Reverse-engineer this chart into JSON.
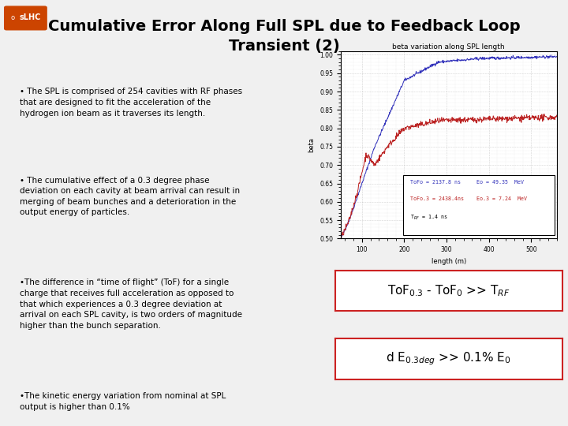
{
  "title_line1": "Cumulative Error Along Full SPL due to Feedback Loop",
  "title_line2": "Transient (2)",
  "title_fontsize": 14,
  "background_color": "#f0f0f0",
  "logo_text": "sLHC",
  "logo_bg": "#cc4400",
  "bullet_texts": [
    "• The SPL is comprised of 254 cavities with RF phases\nthat are designed to fit the acceleration of the\nhydrogen ion beam as it traverses its length.",
    "• The cumulative effect of a 0.3 degree phase\ndeviation on each cavity at beam arrival can result in\nmerging of beam bunches and a deterioration in the\noutput energy of particles.",
    "•The difference in “time of flight” (ToF) for a single\ncharge that receives full acceleration as opposed to\nthat which experiences a 0.3 degree deviation at\narrival on each SPL cavity, is two orders of magnitude\nhigher than the bunch separation.",
    "•The kinetic energy variation from nominal at SPL\noutput is higher than 0.1%"
  ],
  "bullet_fontsize": 7.5,
  "chart_title": "beta variation along SPL length",
  "chart_xlabel": "length (m)",
  "chart_ylabel": "beta",
  "chart_xlim": [
    50,
    560
  ],
  "chart_ylim": [
    0.5,
    1.01
  ],
  "chart_yticks": [
    0.5,
    0.55,
    0.6,
    0.65,
    0.7,
    0.75,
    0.8,
    0.85,
    0.9,
    0.95,
    1.0
  ],
  "chart_xticks": [
    100,
    200,
    300,
    400,
    500
  ],
  "blue_color": "#3333bb",
  "red_color": "#bb2222",
  "box_border_color": "#cc2222"
}
